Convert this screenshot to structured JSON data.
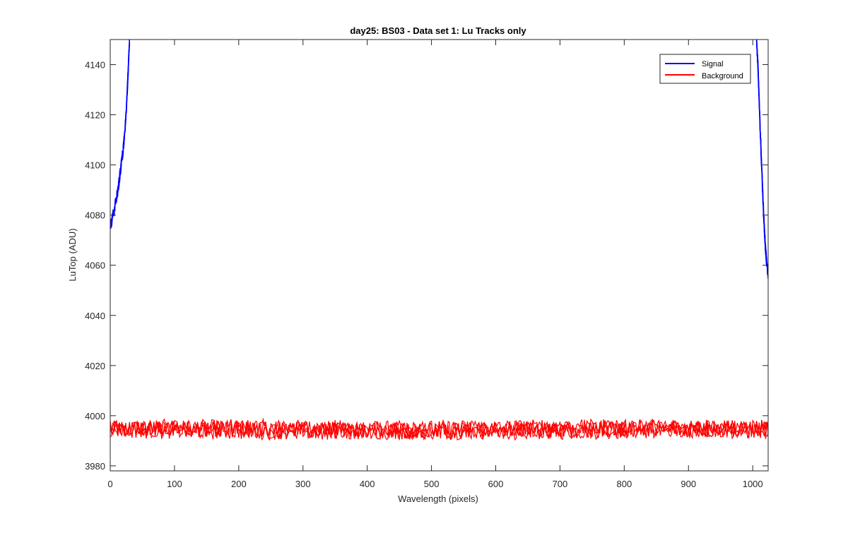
{
  "chart_data": {
    "type": "line",
    "title": "day25: BS03 - Data set 1: Lu Tracks only",
    "xlabel": "Wavelength (pixels)",
    "ylabel": "LuTop (ADU)",
    "xlim": [
      0,
      1024
    ],
    "ylim": [
      3978,
      4150
    ],
    "xticks": [
      0,
      100,
      200,
      300,
      400,
      500,
      600,
      700,
      800,
      900,
      1000
    ],
    "yticks": [
      3980,
      4000,
      4020,
      4040,
      4060,
      4080,
      4100,
      4120,
      4140
    ],
    "grid": false,
    "legend_position": "top-right",
    "series": [
      {
        "name": "Signal",
        "color": "#0000ff",
        "segments": [
          {
            "x": [
              0,
              3,
              6,
              9,
              12,
              15,
              18,
              21,
              24,
              26,
              27,
              28,
              29,
              30
            ],
            "y": [
              4075,
              4078,
              4082,
              4086,
              4090,
              4096,
              4102,
              4108,
              4118,
              4126,
              4132,
              4138,
              4144,
              4150
            ]
          },
          {
            "x": [
              1006,
              1008,
              1010,
              1012,
              1014,
              1016,
              1018,
              1020,
              1022,
              1024
            ],
            "y": [
              4150,
              4140,
              4126,
              4112,
              4098,
              4086,
              4075,
              4066,
              4060,
              4056
            ]
          }
        ]
      },
      {
        "name": "Background",
        "color": "#ff0000",
        "baseline": 3994.5,
        "spread": 3.5
      }
    ]
  }
}
